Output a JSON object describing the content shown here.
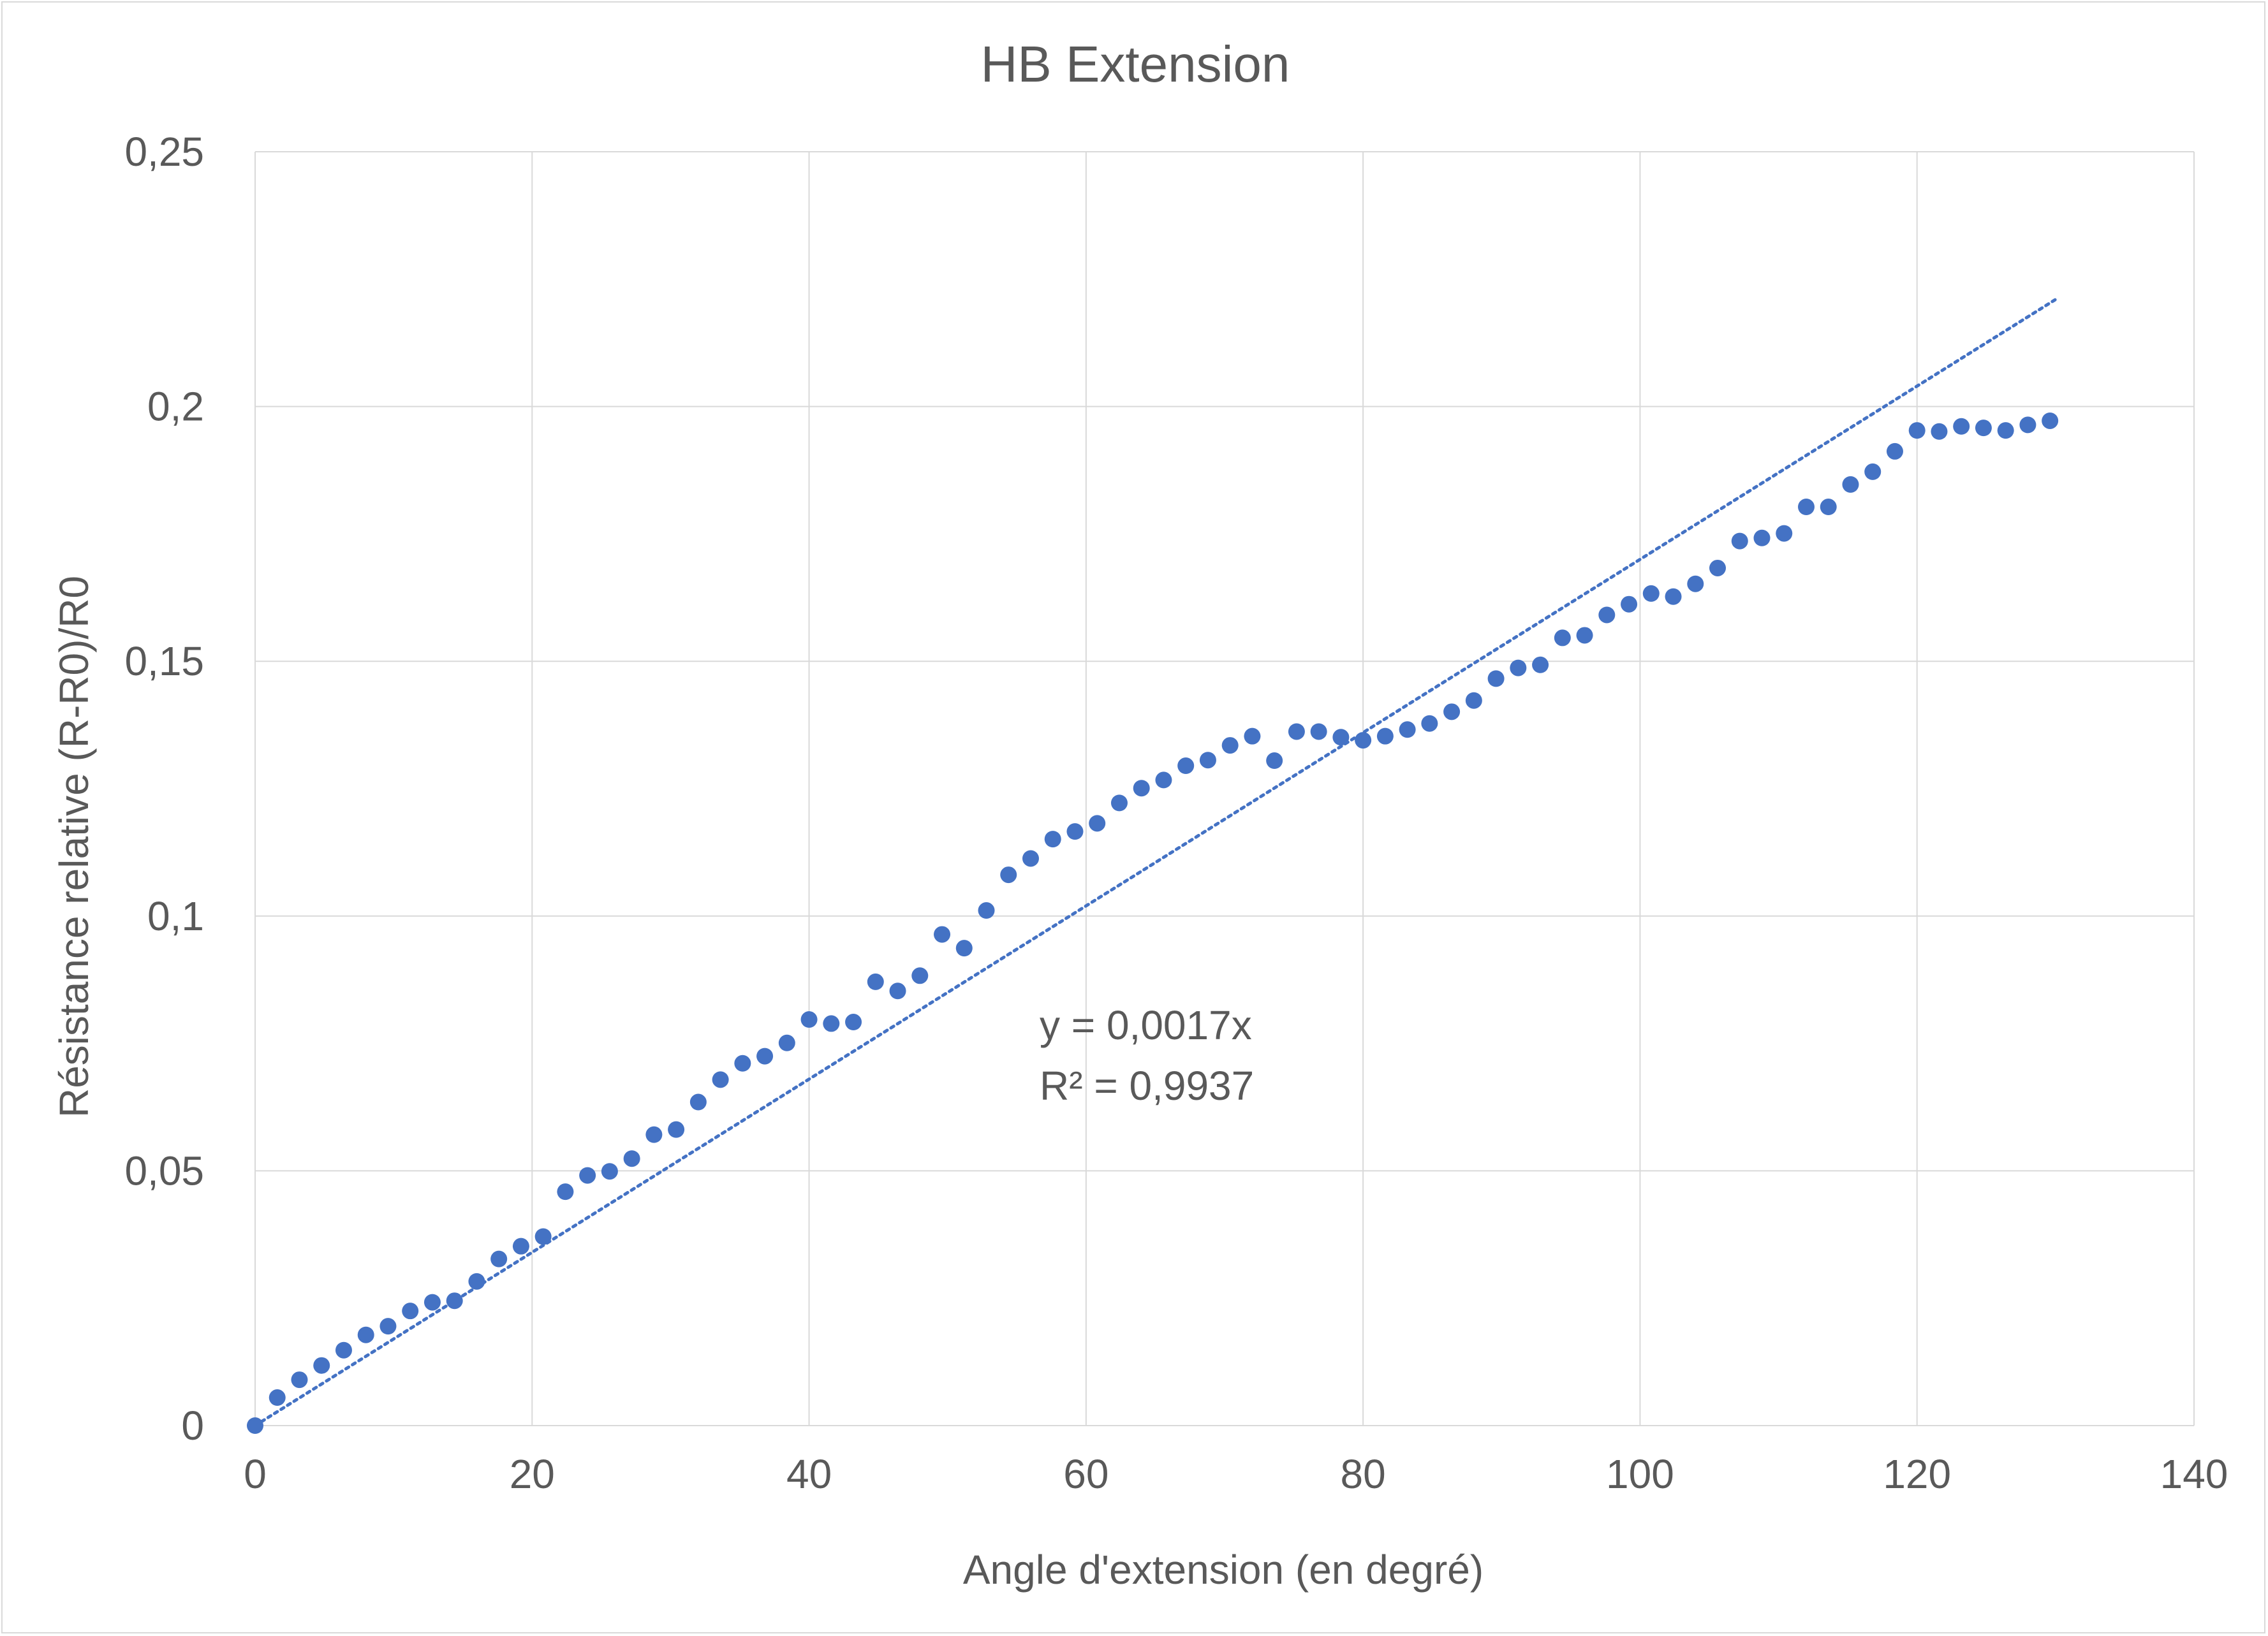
{
  "chart_data": {
    "type": "scatter",
    "title": "HB Extension",
    "xlabel": "Angle d'extension (en degré)",
    "ylabel": "Résistance relative (R-R0)/R0",
    "xlim": [
      0,
      140
    ],
    "ylim": [
      0,
      0.25
    ],
    "x_ticks": [
      0,
      20,
      40,
      60,
      80,
      100,
      120,
      140
    ],
    "x_tick_labels": [
      "0",
      "20",
      "40",
      "60",
      "80",
      "100",
      "120",
      "140"
    ],
    "y_ticks": [
      0,
      0.05,
      0.1,
      0.15,
      0.2,
      0.25
    ],
    "y_tick_labels": [
      "0",
      "0,05",
      "0,1",
      "0,15",
      "0,2",
      "0,25"
    ],
    "grid": true,
    "point_color": "#4472c4",
    "trendline": {
      "type": "linear",
      "slope": 0.0017,
      "intercept": 0,
      "x_range": [
        0,
        130
      ],
      "color": "#4472c4",
      "style": "dotted",
      "equation_label": "y = 0,0017x",
      "r2_label": "R² = 0,9937"
    },
    "series": [
      {
        "points": [
          [
            0,
            0
          ],
          [
            1.6,
            0.0055
          ],
          [
            3.2,
            0.009
          ],
          [
            4.8,
            0.0118
          ],
          [
            6.4,
            0.0148
          ],
          [
            8.0,
            0.0178
          ],
          [
            9.6,
            0.0195
          ],
          [
            11.2,
            0.0225
          ],
          [
            12.8,
            0.0242
          ],
          [
            14.4,
            0.0245
          ],
          [
            16.0,
            0.0283
          ],
          [
            17.6,
            0.0327
          ],
          [
            19.2,
            0.0352
          ],
          [
            20.8,
            0.0371
          ],
          [
            22.4,
            0.0459
          ],
          [
            24.0,
            0.0491
          ],
          [
            25.6,
            0.0499
          ],
          [
            27.2,
            0.0524
          ],
          [
            28.8,
            0.0571
          ],
          [
            30.4,
            0.0581
          ],
          [
            32.0,
            0.0635
          ],
          [
            33.6,
            0.0679
          ],
          [
            35.2,
            0.0711
          ],
          [
            36.8,
            0.0725
          ],
          [
            38.4,
            0.0751
          ],
          [
            40.0,
            0.0797
          ],
          [
            41.6,
            0.0789
          ],
          [
            43.2,
            0.0792
          ],
          [
            44.8,
            0.0871
          ],
          [
            46.4,
            0.0853
          ],
          [
            48.0,
            0.0883
          ],
          [
            49.6,
            0.0964
          ],
          [
            51.2,
            0.0937
          ],
          [
            52.8,
            0.1011
          ],
          [
            54.4,
            0.1081
          ],
          [
            56.0,
            0.1113
          ],
          [
            57.6,
            0.1151
          ],
          [
            59.2,
            0.1166
          ],
          [
            60.8,
            0.1182
          ],
          [
            62.4,
            0.1222
          ],
          [
            64.0,
            0.1251
          ],
          [
            65.6,
            0.1267
          ],
          [
            67.2,
            0.1295
          ],
          [
            68.8,
            0.1306
          ],
          [
            70.4,
            0.1335
          ],
          [
            72.0,
            0.1353
          ],
          [
            73.6,
            0.1305
          ],
          [
            75.2,
            0.1362
          ],
          [
            76.8,
            0.1362
          ],
          [
            78.4,
            0.1351
          ],
          [
            80.0,
            0.1345
          ],
          [
            81.6,
            0.1353
          ],
          [
            83.2,
            0.1366
          ],
          [
            84.8,
            0.1378
          ],
          [
            86.4,
            0.1401
          ],
          [
            88.0,
            0.1423
          ],
          [
            89.6,
            0.1466
          ],
          [
            91.2,
            0.1487
          ],
          [
            92.8,
            0.1493
          ],
          [
            94.4,
            0.1546
          ],
          [
            96.0,
            0.1551
          ],
          [
            97.6,
            0.1591
          ],
          [
            99.2,
            0.1612
          ],
          [
            100.8,
            0.1633
          ],
          [
            102.4,
            0.1627
          ],
          [
            104.0,
            0.1652
          ],
          [
            105.6,
            0.1683
          ],
          [
            107.2,
            0.1736
          ],
          [
            108.8,
            0.1742
          ],
          [
            110.4,
            0.1751
          ],
          [
            112.0,
            0.1803
          ],
          [
            113.6,
            0.1803
          ],
          [
            115.2,
            0.1847
          ],
          [
            116.8,
            0.1872
          ],
          [
            118.4,
            0.1912
          ],
          [
            120.0,
            0.1953
          ],
          [
            121.6,
            0.1951
          ],
          [
            123.2,
            0.1961
          ],
          [
            124.8,
            0.1958
          ],
          [
            126.4,
            0.1953
          ],
          [
            128.0,
            0.1964
          ],
          [
            129.6,
            0.1972
          ]
        ]
      }
    ]
  }
}
